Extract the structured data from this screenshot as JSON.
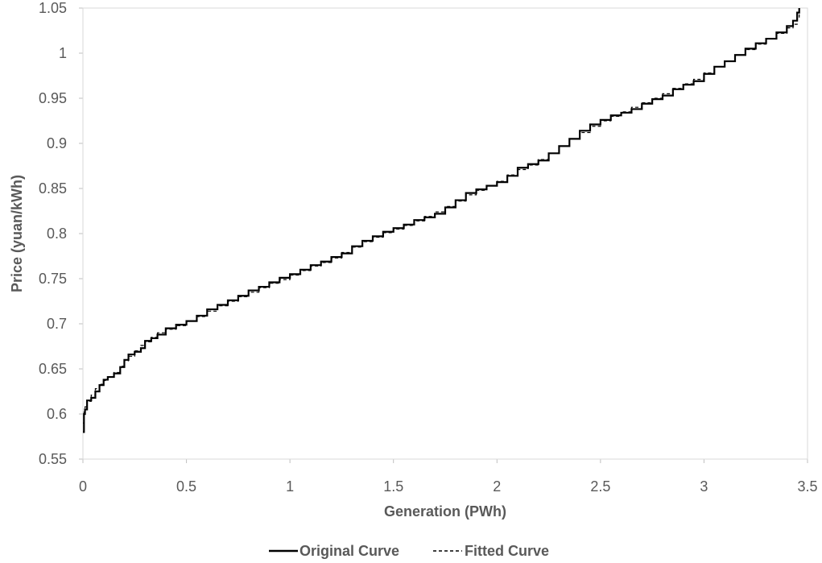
{
  "chart_data": {
    "type": "line",
    "title": "",
    "xlabel": "Generation (PWh)",
    "ylabel": "Price (yuan/kWh)",
    "xlim": [
      0,
      3.5
    ],
    "ylim": [
      0.55,
      1.05
    ],
    "x_ticks": [
      "0",
      "0.5",
      "1",
      "1.5",
      "2",
      "2.5",
      "3",
      "3.5"
    ],
    "y_ticks": [
      "0.55",
      "0.6",
      "0.65",
      "0.7",
      "0.75",
      "0.8",
      "0.85",
      "0.9",
      "0.95",
      "1",
      "1.05"
    ],
    "grid": false,
    "legend_position": "bottom",
    "series": [
      {
        "name": "Original Curve",
        "style": "solid",
        "color": "#000000",
        "x": [
          0,
          0.005,
          0.01,
          0.02,
          0.04,
          0.06,
          0.08,
          0.1,
          0.12,
          0.15,
          0.18,
          0.2,
          0.22,
          0.25,
          0.28,
          0.3,
          0.33,
          0.36,
          0.4,
          0.45,
          0.5,
          0.55,
          0.6,
          0.65,
          0.7,
          0.75,
          0.8,
          0.85,
          0.9,
          0.95,
          1.0,
          1.05,
          1.1,
          1.15,
          1.2,
          1.25,
          1.3,
          1.35,
          1.4,
          1.45,
          1.5,
          1.55,
          1.6,
          1.65,
          1.7,
          1.75,
          1.8,
          1.85,
          1.9,
          1.95,
          2.0,
          2.05,
          2.1,
          2.15,
          2.2,
          2.25,
          2.3,
          2.35,
          2.4,
          2.45,
          2.5,
          2.55,
          2.6,
          2.65,
          2.7,
          2.75,
          2.8,
          2.85,
          2.9,
          2.95,
          3.0,
          3.05,
          3.1,
          3.15,
          3.2,
          3.25,
          3.3,
          3.35,
          3.4,
          3.43,
          3.45,
          3.46
        ],
        "y": [
          0.58,
          0.6,
          0.605,
          0.615,
          0.618,
          0.625,
          0.632,
          0.638,
          0.641,
          0.645,
          0.652,
          0.66,
          0.666,
          0.669,
          0.673,
          0.681,
          0.684,
          0.688,
          0.695,
          0.699,
          0.703,
          0.709,
          0.716,
          0.721,
          0.726,
          0.731,
          0.737,
          0.741,
          0.746,
          0.751,
          0.755,
          0.76,
          0.765,
          0.769,
          0.774,
          0.778,
          0.786,
          0.792,
          0.797,
          0.802,
          0.806,
          0.81,
          0.815,
          0.818,
          0.822,
          0.829,
          0.837,
          0.845,
          0.849,
          0.853,
          0.857,
          0.864,
          0.873,
          0.877,
          0.881,
          0.889,
          0.897,
          0.905,
          0.914,
          0.921,
          0.926,
          0.931,
          0.934,
          0.938,
          0.944,
          0.949,
          0.953,
          0.96,
          0.965,
          0.969,
          0.977,
          0.985,
          0.991,
          0.998,
          1.005,
          1.011,
          1.016,
          1.023,
          1.03,
          1.036,
          1.045,
          1.05
        ]
      },
      {
        "name": "Fitted Curve",
        "style": "dashed",
        "color": "#000000",
        "x": [
          0,
          0.005,
          0.01,
          0.02,
          0.04,
          0.06,
          0.08,
          0.1,
          0.12,
          0.15,
          0.18,
          0.2,
          0.22,
          0.25,
          0.28,
          0.3,
          0.33,
          0.36,
          0.4,
          0.45,
          0.5,
          0.55,
          0.6,
          0.65,
          0.7,
          0.75,
          0.8,
          0.85,
          0.9,
          0.95,
          1.0,
          1.05,
          1.1,
          1.15,
          1.2,
          1.25,
          1.3,
          1.35,
          1.4,
          1.45,
          1.5,
          1.55,
          1.6,
          1.65,
          1.7,
          1.75,
          1.8,
          1.85,
          1.9,
          1.95,
          2.0,
          2.05,
          2.1,
          2.15,
          2.2,
          2.25,
          2.3,
          2.35,
          2.4,
          2.45,
          2.5,
          2.55,
          2.6,
          2.65,
          2.7,
          2.75,
          2.8,
          2.85,
          2.9,
          2.95,
          3.0,
          3.05,
          3.1,
          3.15,
          3.2,
          3.25,
          3.3,
          3.35,
          3.4,
          3.43,
          3.45,
          3.46
        ],
        "y": [
          0.59,
          0.602,
          0.608,
          0.614,
          0.621,
          0.628,
          0.633,
          0.637,
          0.641,
          0.646,
          0.653,
          0.659,
          0.664,
          0.67,
          0.676,
          0.68,
          0.685,
          0.69,
          0.694,
          0.698,
          0.703,
          0.708,
          0.714,
          0.72,
          0.725,
          0.73,
          0.735,
          0.74,
          0.745,
          0.749,
          0.754,
          0.759,
          0.764,
          0.768,
          0.773,
          0.779,
          0.785,
          0.791,
          0.796,
          0.801,
          0.805,
          0.809,
          0.814,
          0.819,
          0.824,
          0.83,
          0.836,
          0.843,
          0.848,
          0.853,
          0.858,
          0.865,
          0.871,
          0.876,
          0.882,
          0.889,
          0.897,
          0.905,
          0.912,
          0.919,
          0.925,
          0.93,
          0.935,
          0.94,
          0.945,
          0.95,
          0.955,
          0.961,
          0.966,
          0.971,
          0.978,
          0.985,
          0.991,
          0.998,
          1.004,
          1.01,
          1.016,
          1.022,
          1.028,
          1.032,
          1.04,
          1.045
        ]
      }
    ]
  }
}
